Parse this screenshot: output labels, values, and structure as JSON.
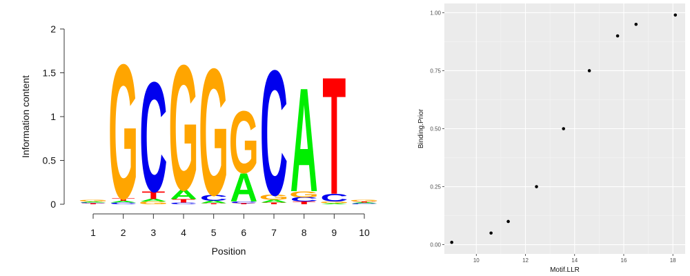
{
  "chart_data": [
    {
      "type": "sequence-logo",
      "xlabel": "Position",
      "ylabel": "Information content",
      "ylim": [
        0,
        2
      ],
      "y_ticks": [
        "0",
        "0.5",
        "1",
        "1.5",
        "2"
      ],
      "x_ticks": [
        "1",
        "2",
        "3",
        "4",
        "5",
        "6",
        "7",
        "8",
        "9",
        "10"
      ],
      "colors": {
        "A": "#00ee00",
        "C": "#0000ee",
        "G": "#ffa500",
        "T": "#ff0000"
      },
      "positions": [
        {
          "pos": 1,
          "stack": [
            [
              "T",
              0.01
            ],
            [
              "C",
              0.01
            ],
            [
              "A",
              0.01
            ],
            [
              "G",
              0.02
            ]
          ]
        },
        {
          "pos": 2,
          "stack": [
            [
              "C",
              0.02
            ],
            [
              "A",
              0.02
            ],
            [
              "T",
              0.03
            ],
            [
              "G",
              1.57
            ]
          ]
        },
        {
          "pos": 3,
          "stack": [
            [
              "G",
              0.03
            ],
            [
              "A",
              0.03
            ],
            [
              "T",
              0.09
            ],
            [
              "C",
              1.28
            ]
          ]
        },
        {
          "pos": 4,
          "stack": [
            [
              "C",
              0.02
            ],
            [
              "T",
              0.04
            ],
            [
              "A",
              0.11
            ],
            [
              "G",
              1.46
            ]
          ]
        },
        {
          "pos": 5,
          "stack": [
            [
              "T",
              0.01
            ],
            [
              "A",
              0.03
            ],
            [
              "C",
              0.07
            ],
            [
              "G",
              1.48
            ]
          ]
        },
        {
          "pos": 6,
          "stack": [
            [
              "T",
              0.01
            ],
            [
              "C",
              0.02
            ],
            [
              "A",
              0.33
            ],
            [
              "G",
              0.72
            ]
          ]
        },
        {
          "pos": 7,
          "stack": [
            [
              "T",
              0.02
            ],
            [
              "A",
              0.03
            ],
            [
              "G",
              0.06
            ],
            [
              "C",
              1.46
            ]
          ]
        },
        {
          "pos": 8,
          "stack": [
            [
              "T",
              0.03
            ],
            [
              "C",
              0.05
            ],
            [
              "G",
              0.07
            ],
            [
              "A",
              1.21
            ]
          ]
        },
        {
          "pos": 9,
          "stack": [
            [
              "A",
              0.01
            ],
            [
              "G",
              0.02
            ],
            [
              "C",
              0.09
            ],
            [
              "T",
              1.37
            ]
          ]
        },
        {
          "pos": 10,
          "stack": [
            [
              "C",
              0.01
            ],
            [
              "A",
              0.01
            ],
            [
              "T",
              0.01
            ],
            [
              "G",
              0.02
            ]
          ]
        }
      ]
    },
    {
      "type": "scatter",
      "xlabel": "Motif.LLR",
      "ylabel": "Binding.Prior",
      "xlim": [
        8.7,
        18.5
      ],
      "ylim": [
        -0.04,
        1.04
      ],
      "x_ticks": [
        10,
        12,
        14,
        16,
        18
      ],
      "y_ticks": [
        "0.00",
        "0.25",
        "0.50",
        "0.75",
        "1.00"
      ],
      "grid": true,
      "background": "#ebebeb",
      "points": [
        {
          "x": 9.0,
          "y": 0.01
        },
        {
          "x": 10.6,
          "y": 0.05
        },
        {
          "x": 11.3,
          "y": 0.1
        },
        {
          "x": 12.45,
          "y": 0.25
        },
        {
          "x": 13.55,
          "y": 0.5
        },
        {
          "x": 14.6,
          "y": 0.75
        },
        {
          "x": 15.75,
          "y": 0.9
        },
        {
          "x": 16.5,
          "y": 0.95
        },
        {
          "x": 18.1,
          "y": 0.99
        }
      ]
    }
  ]
}
